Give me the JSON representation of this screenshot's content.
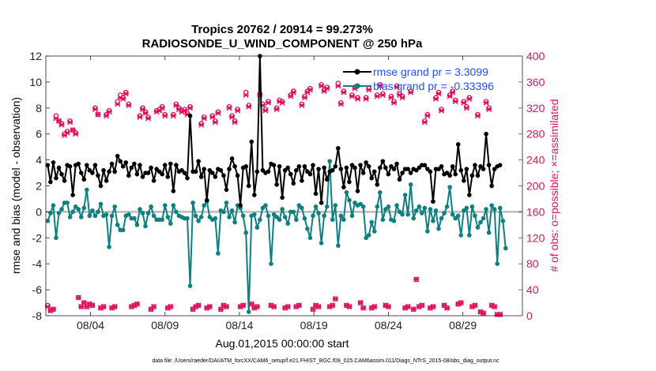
{
  "chart_data": {
    "type": "line",
    "title": "Tropics 20762 / 20914 = 99.273%",
    "subtitle": "RADIOSONDE_U_WIND_COMPONENT @ 250 hPa",
    "xlabel": "Aug.01,2015 00:00:00 start",
    "ylabel": "rmse and bias (model - observation)",
    "ylabel_right": "# of obs: o=possible; ×=assimilated",
    "footnote": "data file: /Users/raeder/DAI/ATM_forcXX/CAM6_setup/f.e21.FHIST_BGC.f09_025.CAM6assim.011/Diags_NTrS_2015-08/obs_diag_output.nc",
    "xlim": [
      1,
      33
    ],
    "ylim": [
      -8,
      12
    ],
    "ylim_right": [
      0,
      400
    ],
    "x_ticks": [
      4,
      9,
      14,
      19,
      24,
      29
    ],
    "x_tick_labels": [
      "08/04",
      "08/09",
      "08/14",
      "08/19",
      "08/24",
      "08/29"
    ],
    "y_ticks": [
      -8,
      -6,
      -4,
      -2,
      0,
      2,
      4,
      6,
      8,
      10,
      12
    ],
    "y_ticks_right": [
      0,
      40,
      80,
      120,
      160,
      200,
      240,
      280,
      320,
      360,
      400
    ],
    "colors": {
      "rmse": "#000000",
      "bias": "#0f7f7f",
      "obs": "#e0105a",
      "zero_line": "#bbbbbb",
      "legend_text": "#1f4fff"
    },
    "legend": {
      "position": "top-right",
      "entries": [
        "rmse grand pr = 3.3099",
        "bias grand pr = -0.33396"
      ]
    },
    "series": [
      {
        "name": "rmse",
        "values": [
          3.6,
          2.3,
          3.8,
          2.6,
          3.4,
          2.9,
          2.4,
          3.6,
          3.5,
          1.3,
          3.6,
          3.7,
          3.0,
          2.5,
          3.6,
          3.2,
          3.0,
          3.6,
          2.8,
          2.0,
          3.2,
          2.4,
          3.1,
          3.7,
          3.1,
          4.3,
          3.9,
          3.5,
          3.8,
          2.8,
          3.4,
          3.7,
          2.9,
          3.6,
          2.7,
          3.0,
          3.0,
          3.4,
          2.4,
          3.3,
          3.1,
          2.9,
          3.6,
          2.7,
          3.7,
          1.6,
          3.6,
          3.1,
          3.2,
          3.0,
          2.6,
          7.4,
          3.1,
          3.1,
          3.9,
          2.7,
          3.3,
          0.9,
          3.2,
          3.0,
          2.7,
          3.3,
          3.2,
          2.8,
          1.7,
          3.3,
          4.1,
          3.5,
          2.8,
          0.5,
          3.4,
          3.5,
          2.0,
          5.4,
          1.3,
          3.1,
          12.0,
          3.2,
          3.0,
          3.1,
          3.7,
          3.6,
          2.1,
          3.5,
          1.1,
          3.2,
          3.4,
          2.9,
          2.2,
          3.2,
          3.5,
          2.4,
          3.5,
          3.1,
          2.9,
          3.6,
          1.4,
          3.3,
          0.7,
          3.4,
          2.5,
          3.1,
          3.2,
          3.5,
          4.9,
          3.3,
          1.9,
          3.4,
          2.3,
          3.6,
          3.4,
          1.6,
          3.6,
          3.0,
          3.8,
          3.5,
          2.6,
          3.1,
          2.1,
          3.4,
          3.9,
          3.4,
          2.9,
          3.5,
          3.3,
          3.7,
          2.5,
          3.0,
          3.3,
          3.3,
          3.0,
          3.3,
          3.2,
          3.4,
          3.6,
          3.6,
          3.3,
          3.1,
          0.8,
          3.3,
          3.3,
          3.5,
          2.9,
          3.0,
          2.8,
          3.5,
          2.9,
          5.2,
          3.2,
          2.4,
          3.3,
          1.3,
          2.8,
          3.6,
          2.8,
          3.5,
          3.3,
          6.0,
          3.6,
          2.0,
          3.3,
          3.5,
          3.6
        ]
      },
      {
        "name": "bias",
        "values": [
          -0.7,
          -0.1,
          0.5,
          -2.0,
          -0.1,
          0.2,
          0.7,
          0.7,
          -0.4,
          0.0,
          0.4,
          0.2,
          -0.4,
          0.3,
          1.7,
          -0.3,
          0.1,
          -0.3,
          0.0,
          0.6,
          -0.3,
          -0.2,
          -2.7,
          -0.3,
          0.4,
          -1.0,
          -1.4,
          -1.4,
          -0.3,
          -0.2,
          -0.5,
          -0.5,
          -1.0,
          0.2,
          -0.1,
          -1.1,
          -0.1,
          0.4,
          -0.3,
          -0.6,
          -0.6,
          -0.6,
          0.5,
          -0.4,
          -0.9,
          0.5,
          0.0,
          -0.3,
          -0.4,
          -0.5,
          -0.5,
          -5.7,
          0.7,
          -0.3,
          -0.7,
          -0.4,
          0.5,
          0.8,
          -0.4,
          -0.6,
          -0.5,
          -3.2,
          0.1,
          0.0,
          0.7,
          -0.4,
          0.1,
          -0.8,
          0.5,
          0.3,
          -0.3,
          -1.6,
          -7.7,
          -0.3,
          -0.2,
          -1.2,
          -0.6,
          0.3,
          0.5,
          -0.3,
          -4.0,
          -0.2,
          -0.4,
          -0.6,
          0.2,
          -0.4,
          -0.9,
          0.0,
          0.0,
          -0.6,
          0.5,
          0.3,
          -0.5,
          -1.3,
          -2.0,
          -0.3,
          0.4,
          -0.1,
          -2.4,
          -0.3,
          0.4,
          3.9,
          -0.6,
          0.5,
          -2.6,
          -0.3,
          -0.6,
          1.5,
          0.9,
          -0.3,
          0.7,
          0.5,
          0.6,
          0.4,
          -2.0,
          -1.8,
          -0.8,
          -1.5,
          0.4,
          1.5,
          -0.6,
          0.2,
          0.4,
          -0.6,
          -0.7,
          0.5,
          0.0,
          -0.2,
          1.3,
          -0.2,
          2.1,
          -0.5,
          0.1,
          0.4,
          -0.1,
          0.3,
          -1.5,
          0.2,
          -0.7,
          0.1,
          -1.3,
          -0.5,
          -0.1,
          0.4,
          1.9,
          -0.2,
          -0.5,
          -0.3,
          -1.8,
          0.1,
          0.3,
          -1.8,
          0.4,
          -0.3,
          -1.2,
          -0.8,
          -0.5,
          0.2,
          -1.6,
          0.5,
          0.2,
          -4.0,
          0.3,
          -0.7,
          -2.8
        ]
      },
      {
        "name": "obs_possible",
        "values": [
          16,
          8,
          10,
          308,
          300,
          296,
          280,
          284,
          300,
          286,
          282,
          28,
          14,
          20,
          14,
          18,
          16,
          320,
          310,
          12,
          14,
          310,
          316,
          12,
          14,
          330,
          340,
          336,
          344,
          326,
          14,
          16,
          18,
          308,
          320,
          314,
          306,
          10,
          14,
          316,
          318,
          322,
          310,
          12,
          14,
          310,
          326,
          320,
          316,
          318,
          312,
          322,
          10,
          14,
          16,
          296,
          306,
          12,
          14,
          308,
          300,
          314,
          10,
          16,
          14,
          322,
          308,
          300,
          318,
          14,
          16,
          344,
          324,
          18,
          12,
          14,
          342,
          326,
          318,
          330,
          16,
          14,
          320,
          332,
          330,
          12,
          14,
          340,
          346,
          14,
          16,
          326,
          338,
          346,
          350,
          10,
          16,
          14,
          356,
          348,
          352,
          14,
          16,
          26,
          358,
          328,
          346,
          16,
          14,
          340,
          352,
          336,
          20,
          12,
          336,
          350,
          12,
          14,
          340,
          356,
          342,
          16,
          14,
          338,
          330,
          354,
          342,
          338,
          12,
          14,
          346,
          10,
          56,
          14,
          16,
          300,
          310,
          12,
          14,
          336,
          344,
          318,
          16,
          12,
          340,
          346,
          332,
          18,
          20,
          330,
          322,
          336,
          14,
          16,
          310,
          6,
          4,
          330,
          320,
          16,
          14,
          2,
          2
        ]
      },
      {
        "name": "obs_assimilated",
        "values": [
          14,
          8,
          10,
          304,
          300,
          294,
          278,
          282,
          298,
          286,
          280,
          28,
          14,
          20,
          14,
          18,
          16,
          318,
          310,
          12,
          14,
          308,
          314,
          12,
          14,
          326,
          336,
          334,
          342,
          324,
          14,
          16,
          18,
          306,
          318,
          312,
          304,
          10,
          14,
          314,
          316,
          320,
          308,
          12,
          14,
          308,
          324,
          318,
          314,
          316,
          310,
          320,
          10,
          14,
          16,
          294,
          304,
          12,
          14,
          306,
          298,
          312,
          10,
          16,
          14,
          320,
          306,
          298,
          316,
          14,
          16,
          340,
          322,
          18,
          12,
          14,
          340,
          324,
          316,
          328,
          16,
          14,
          318,
          330,
          328,
          12,
          14,
          338,
          344,
          14,
          16,
          324,
          336,
          344,
          348,
          10,
          16,
          14,
          354,
          346,
          350,
          14,
          16,
          26,
          354,
          326,
          344,
          16,
          14,
          338,
          350,
          334,
          20,
          12,
          334,
          348,
          12,
          14,
          338,
          354,
          340,
          16,
          14,
          336,
          328,
          352,
          340,
          336,
          12,
          14,
          344,
          10,
          56,
          14,
          16,
          298,
          308,
          12,
          14,
          334,
          342,
          316,
          16,
          12,
          338,
          344,
          330,
          18,
          20,
          328,
          320,
          334,
          14,
          16,
          308,
          6,
          4,
          328,
          318,
          16,
          14,
          2,
          2
        ]
      }
    ]
  }
}
